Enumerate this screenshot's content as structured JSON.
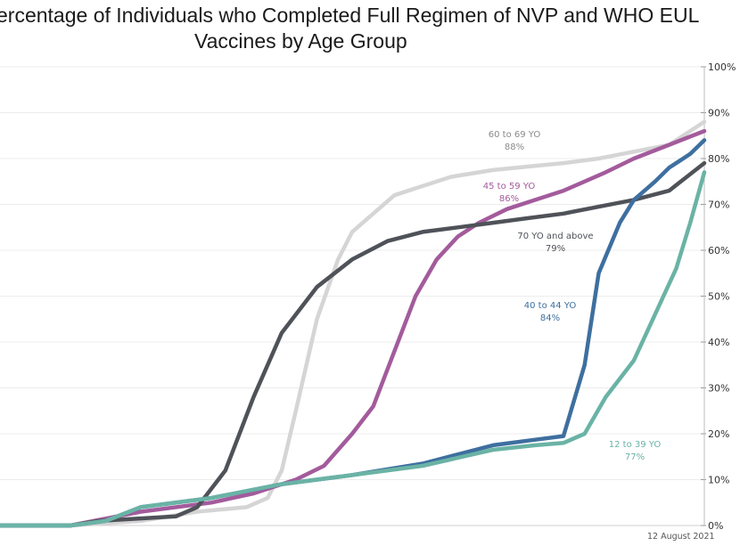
{
  "chart_data": {
    "type": "line",
    "title_line1": "ercentage of Individuals who Completed Full Regimen of NVP and WHO EUL",
    "title_line2": "Vaccines by Age Group",
    "footnote": "12 August 2021",
    "y_axis": {
      "side": "right",
      "ylim": [
        0,
        100
      ],
      "ticks": [
        "0%",
        "10%",
        "20%",
        "30%",
        "40%",
        "50%",
        "60%",
        "70%",
        "80%",
        "90%",
        "100%"
      ]
    },
    "x_axis": {
      "range": [
        0,
        100
      ],
      "labels_shown": false
    },
    "grid": "horizontal",
    "series": [
      {
        "name": "60 to 69 YO",
        "label_line1": "60 to 69 YO",
        "label_line2": "88%",
        "color": "#d5d5d5",
        "x": [
          0,
          10,
          20,
          28,
          35,
          38,
          40,
          42,
          45,
          48,
          50,
          53,
          56,
          60,
          64,
          70,
          80,
          85,
          90,
          95,
          98,
          100
        ],
        "y": [
          0,
          0,
          1,
          3,
          4,
          6,
          12,
          25,
          45,
          58,
          64,
          68,
          72,
          74,
          76,
          77.5,
          79,
          80,
          81.5,
          83,
          86,
          88
        ]
      },
      {
        "name": "45 to 59 YO",
        "label_line1": "45 to 59 YO",
        "label_line2": "86%",
        "color": "#a35b9c",
        "x": [
          0,
          10,
          20,
          30,
          36,
          42,
          46,
          50,
          53,
          56,
          59,
          62,
          65,
          68,
          72,
          76,
          80,
          86,
          90,
          95,
          100
        ],
        "y": [
          0,
          0,
          3,
          5,
          7,
          10,
          13,
          20,
          26,
          38,
          50,
          58,
          63,
          66,
          69,
          71,
          73,
          77,
          80,
          83,
          86
        ]
      },
      {
        "name": "70 YO and above",
        "label_line1": "70 YO and above",
        "label_line2": "79%",
        "color": "#4f5258",
        "x": [
          0,
          10,
          14,
          25,
          28,
          32,
          36,
          40,
          45,
          50,
          55,
          60,
          65,
          70,
          75,
          80,
          85,
          90,
          95,
          100
        ],
        "y": [
          0,
          0,
          1,
          2,
          4,
          12,
          28,
          42,
          52,
          58,
          62,
          64,
          65,
          66,
          67,
          68,
          69.5,
          71,
          73,
          79
        ]
      },
      {
        "name": "40 to 44 YO",
        "label_line1": "40 to 44 YO",
        "label_line2": "84%",
        "color": "#3e6f9f",
        "x": [
          0,
          10,
          15,
          20,
          30,
          40,
          50,
          60,
          70,
          75,
          80,
          83,
          85,
          88,
          90,
          93,
          95,
          98,
          100
        ],
        "y": [
          0,
          0,
          1,
          4,
          6,
          9,
          11,
          13.5,
          17.5,
          18.5,
          19.5,
          35,
          55,
          66,
          71,
          75,
          78,
          81,
          84
        ]
      },
      {
        "name": "12 to 39 YO",
        "label_line1": "12 to 39 YO",
        "label_line2": "77%",
        "color": "#6ab3a5",
        "x": [
          0,
          10,
          15,
          20,
          30,
          40,
          50,
          60,
          70,
          76,
          80,
          83,
          86,
          90,
          93,
          96,
          98,
          100
        ],
        "y": [
          0,
          0,
          1,
          4,
          6,
          9,
          11,
          13,
          16.5,
          17.5,
          18,
          20,
          28,
          36,
          46,
          56,
          66,
          77
        ]
      }
    ]
  }
}
